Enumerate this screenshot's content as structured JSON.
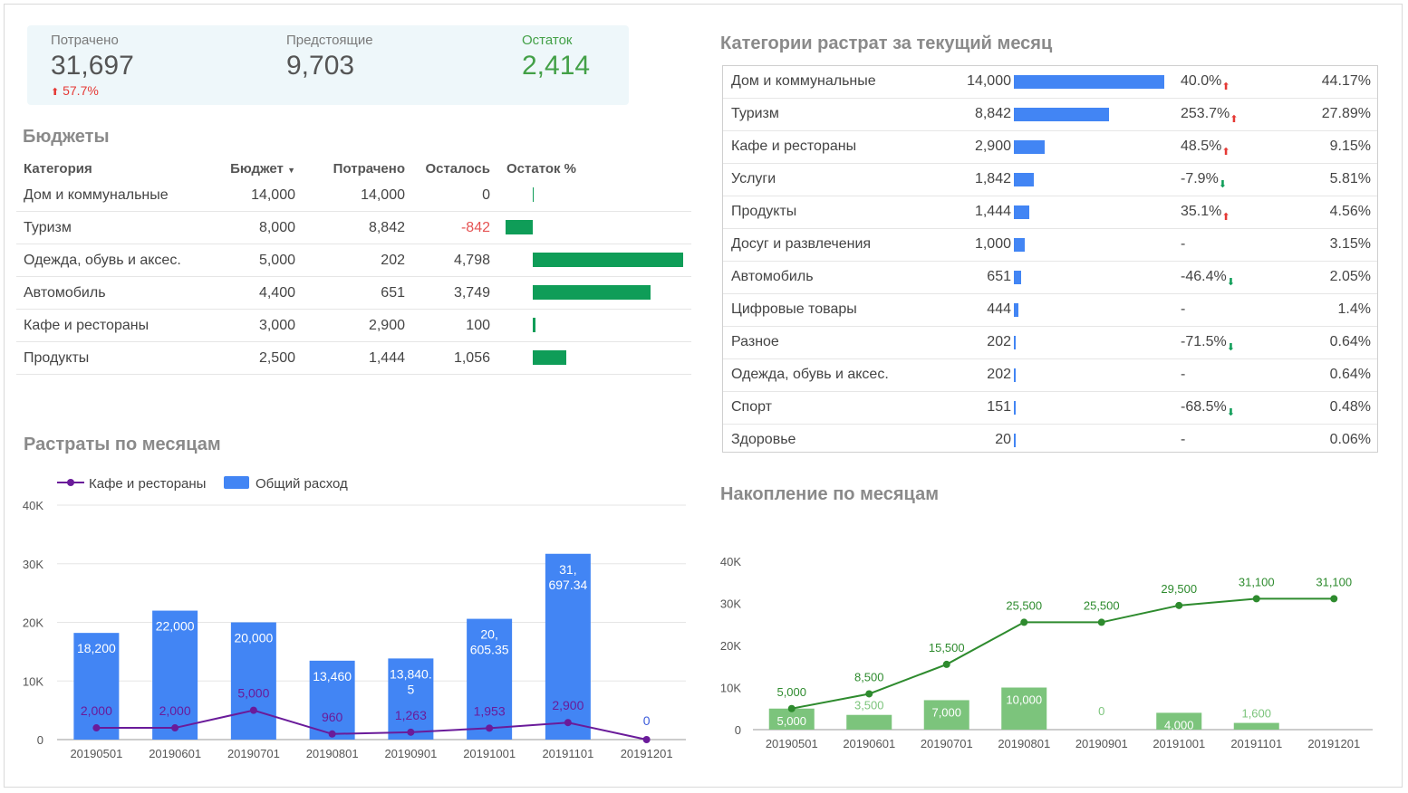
{
  "kpi": {
    "spent": {
      "label": "Потрачено",
      "value": "31,697",
      "delta": "57.7%"
    },
    "upcoming": {
      "label": "Предстоящие",
      "value": "9,703"
    },
    "remaining": {
      "label": "Остаток",
      "value": "2,414"
    }
  },
  "budgets": {
    "title": "Бюджеты",
    "headers": {
      "category": "Категория",
      "budget": "Бюджет",
      "spent": "Потрачено",
      "left": "Осталось",
      "pct": "Остаток %"
    },
    "rows": [
      {
        "category": "Дом и коммунальные",
        "budget": "14,000",
        "spent": "14,000",
        "left": "0",
        "left_value": 0
      },
      {
        "category": "Туризм",
        "budget": "8,000",
        "spent": "8,842",
        "left": "-842",
        "left_value": -842
      },
      {
        "category": "Одежда, обувь и аксес.",
        "budget": "5,000",
        "spent": "202",
        "left": "4,798",
        "left_value": 4798
      },
      {
        "category": "Автомобиль",
        "budget": "4,400",
        "spent": "651",
        "left": "3,749",
        "left_value": 3749
      },
      {
        "category": "Кафе и рестораны",
        "budget": "3,000",
        "spent": "2,900",
        "left": "100",
        "left_value": 100
      },
      {
        "category": "Продукты",
        "budget": "2,500",
        "spent": "1,444",
        "left": "1,056",
        "left_value": 1056
      }
    ]
  },
  "categories": {
    "title": "Категории растрат за текущий месяц",
    "rows": [
      {
        "name": "Дом и коммунальные",
        "value": "14,000",
        "amount": 14000,
        "change": "40.0%",
        "dir": "up",
        "share": "44.17%"
      },
      {
        "name": "Туризм",
        "value": "8,842",
        "amount": 8842,
        "change": "253.7%",
        "dir": "up",
        "share": "27.89%"
      },
      {
        "name": "Кафе и рестораны",
        "value": "2,900",
        "amount": 2900,
        "change": "48.5%",
        "dir": "up",
        "share": "9.15%"
      },
      {
        "name": "Услуги",
        "value": "1,842",
        "amount": 1842,
        "change": "-7.9%",
        "dir": "down",
        "share": "5.81%"
      },
      {
        "name": "Продукты",
        "value": "1,444",
        "amount": 1444,
        "change": "35.1%",
        "dir": "up",
        "share": "4.56%"
      },
      {
        "name": "Досуг и развлечения",
        "value": "1,000",
        "amount": 1000,
        "change": "-",
        "dir": "none",
        "share": "3.15%"
      },
      {
        "name": "Автомобиль",
        "value": "651",
        "amount": 651,
        "change": "-46.4%",
        "dir": "down",
        "share": "2.05%"
      },
      {
        "name": "Цифровые товары",
        "value": "444",
        "amount": 444,
        "change": "-",
        "dir": "none",
        "share": "1.4%"
      },
      {
        "name": "Разное",
        "value": "202",
        "amount": 202,
        "change": "-71.5%",
        "dir": "down",
        "share": "0.64%"
      },
      {
        "name": "Одежда, обувь и аксес.",
        "value": "202",
        "amount": 202,
        "change": "-",
        "dir": "none",
        "share": "0.64%"
      },
      {
        "name": "Спорт",
        "value": "151",
        "amount": 151,
        "change": "-68.5%",
        "dir": "down",
        "share": "0.48%"
      },
      {
        "name": "Здоровье",
        "value": "20",
        "amount": 20,
        "change": "-",
        "dir": "none",
        "share": "0.06%"
      }
    ]
  },
  "colors": {
    "blue": "#4285f4",
    "purple": "#6a1b9a",
    "green_dark": "#2e8b2e",
    "green_light": "#7cc47c",
    "bar_green": "#0f9d58"
  },
  "chart_data": [
    {
      "type": "bar",
      "title": "Растраты по месяцам",
      "categories": [
        "20190501",
        "20190601",
        "20190701",
        "20190801",
        "20190901",
        "20191001",
        "20191101",
        "20191201"
      ],
      "series": [
        {
          "name": "Общий расход",
          "kind": "bar",
          "values": [
            18200,
            22000,
            20000,
            13460,
            13840.5,
            20605.35,
            31697.34,
            0
          ],
          "labels": [
            "18,200",
            "22,000",
            "20,000",
            "13,460",
            "13,840.\n5",
            "20,\n605.35",
            "31,\n697.34",
            "0"
          ]
        },
        {
          "name": "Кафе и рестораны",
          "kind": "line",
          "values": [
            2000,
            2000,
            5000,
            960,
            1263,
            1953,
            2900,
            0
          ],
          "labels": [
            "2,000",
            "2,000",
            "5,000",
            "960",
            "1,263",
            "1,953",
            "2,900",
            ""
          ]
        }
      ],
      "yticks": [
        "0",
        "10K",
        "20K",
        "30K",
        "40K"
      ],
      "ylim": [
        0,
        40000
      ],
      "legend": "top-left"
    },
    {
      "type": "bar",
      "title": "Накопление по месяцам",
      "categories": [
        "20190501",
        "20190601",
        "20190701",
        "20190801",
        "20190901",
        "20191001",
        "20191101",
        "20191201"
      ],
      "series": [
        {
          "kind": "line",
          "values": [
            5000,
            8500,
            15500,
            25500,
            25500,
            29500,
            31100,
            31100
          ],
          "labels": [
            "5,000",
            "8,500",
            "15,500",
            "25,500",
            "25,500",
            "29,500",
            "31,100",
            "31,100"
          ]
        },
        {
          "kind": "bar",
          "values": [
            5000,
            3500,
            7000,
            10000,
            0,
            4000,
            1600,
            0
          ],
          "labels": [
            "5,000",
            "3,500",
            "7,000",
            "10,000",
            "0",
            "4,000",
            "1,600",
            ""
          ]
        }
      ],
      "yticks": [
        "0",
        "10K",
        "20K",
        "30K",
        "40K"
      ],
      "ylim": [
        0,
        40000
      ]
    }
  ]
}
